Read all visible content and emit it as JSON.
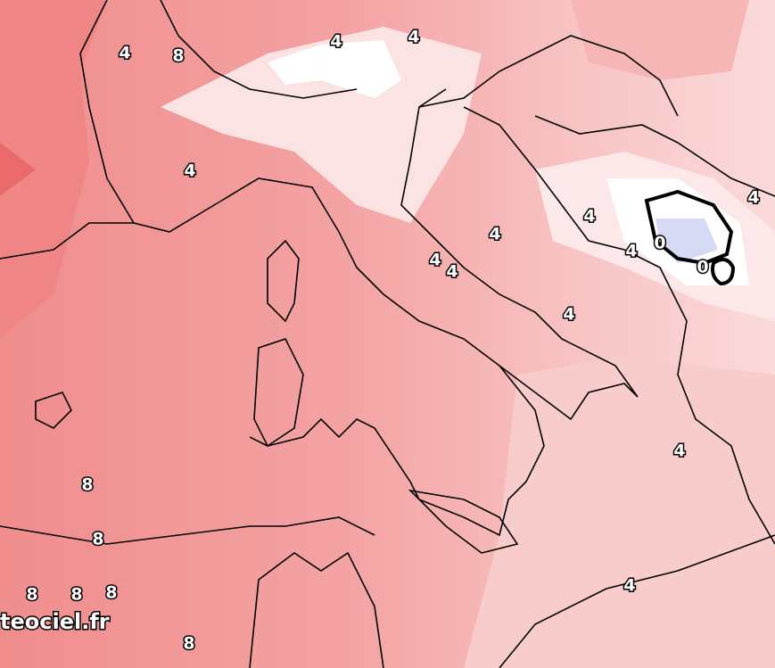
{
  "map": {
    "contour_labels": [
      4,
      8,
      4,
      4,
      4,
      4,
      4,
      4,
      4,
      4,
      4,
      0,
      0,
      4,
      4,
      8,
      8,
      8,
      8,
      8,
      4,
      8
    ],
    "watermark": "teociel.fr"
  }
}
